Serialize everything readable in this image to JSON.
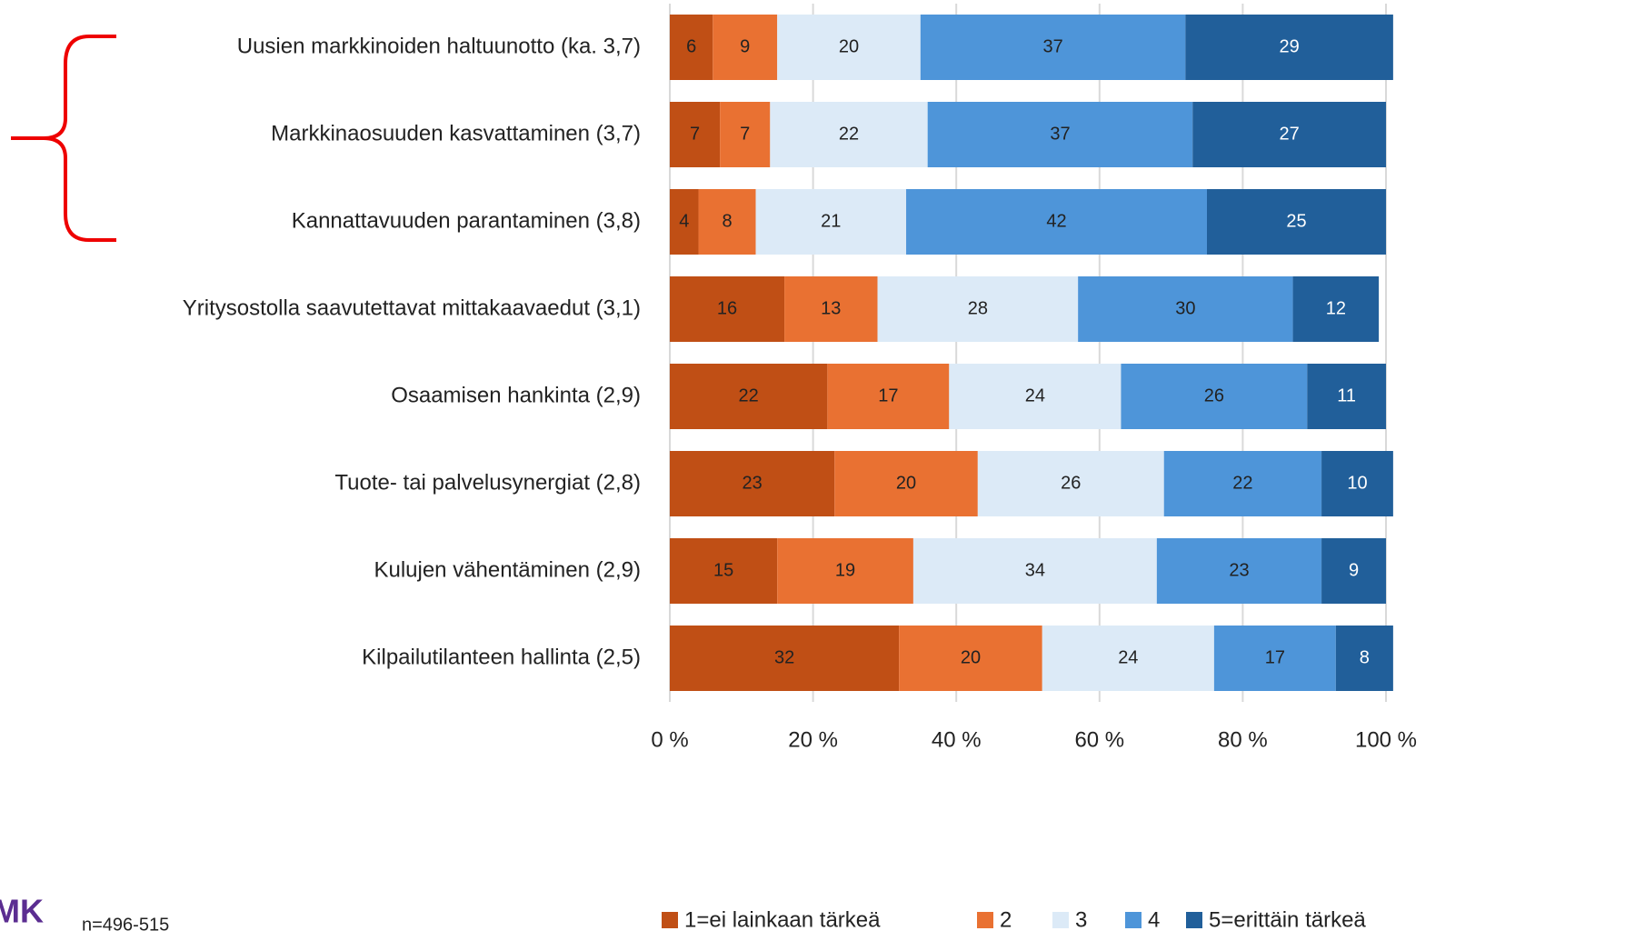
{
  "chart_data": {
    "type": "stacked_barh",
    "categories": [
      "Uusien markkinoiden haltuunotto (ka. 3,7)",
      "Markkinaosuuden kasvattaminen (3,7)",
      "Kannattavuuden parantaminen (3,8)",
      "Yritysostolla saavutettavat mittakaavaedut (3,1)",
      "Osaamisen hankinta (2,9)",
      "Tuote- tai palvelusynergiat (2,8)",
      "Kulujen vähentäminen (2,9)",
      "Kilpailutilanteen hallinta (2,5)"
    ],
    "series": [
      {
        "name": "1=ei lainkaan tärkeä",
        "color": "#c04f15",
        "values": [
          6,
          7,
          4,
          16,
          22,
          23,
          15,
          32
        ]
      },
      {
        "name": "2",
        "color": "#e97132",
        "values": [
          9,
          7,
          8,
          13,
          17,
          20,
          19,
          20
        ]
      },
      {
        "name": "3",
        "color": "#dceaf7",
        "values": [
          20,
          22,
          21,
          28,
          24,
          26,
          34,
          24
        ]
      },
      {
        "name": "4",
        "color": "#4e95d9",
        "values": [
          37,
          37,
          42,
          30,
          26,
          22,
          23,
          17
        ]
      },
      {
        "name": "5=erittäin tärkeä",
        "color": "#215f9a",
        "values": [
          29,
          27,
          25,
          12,
          11,
          10,
          9,
          8
        ]
      }
    ],
    "xlim": [
      0,
      100
    ],
    "xticks": [
      {
        "value": 0,
        "label": "0 %"
      },
      {
        "value": 20,
        "label": "20 %"
      },
      {
        "value": 40,
        "label": "40 %"
      },
      {
        "value": 60,
        "label": "60 %"
      },
      {
        "value": 80,
        "label": "80 %"
      },
      {
        "value": 100,
        "label": "100 %"
      }
    ],
    "grid": true,
    "legend": "bottom",
    "footnote": "n=496-515",
    "logo": "MK"
  }
}
